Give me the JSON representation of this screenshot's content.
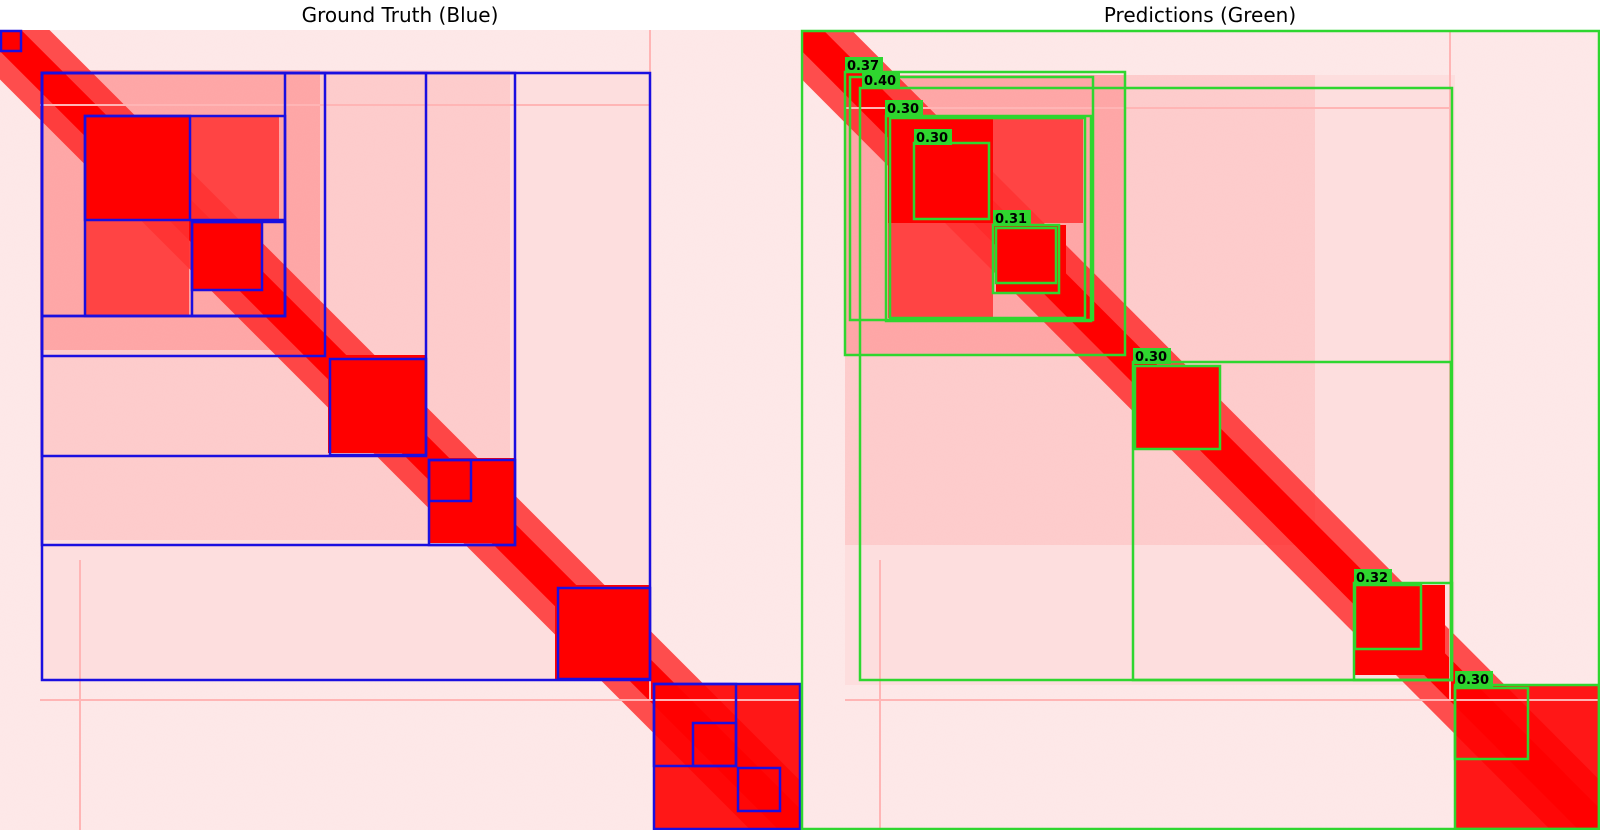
{
  "panels": {
    "left_title": "Ground Truth (Blue)",
    "right_title": "Predictions (Green)"
  },
  "colors": {
    "ground_truth_box": "#1a0fe0",
    "prediction_box": "#2fd62f",
    "score_label_bg": "#2fd62f",
    "heatmap_hot": "#ff0000",
    "heatmap_cold": "#fff4f4"
  },
  "ground_truth": {
    "box_count": 22
  },
  "predictions": {
    "scores": [
      "0.37",
      "0.40",
      "0.30",
      "0.30",
      "0.31",
      "0.30",
      "0.32",
      "0.30"
    ]
  }
}
